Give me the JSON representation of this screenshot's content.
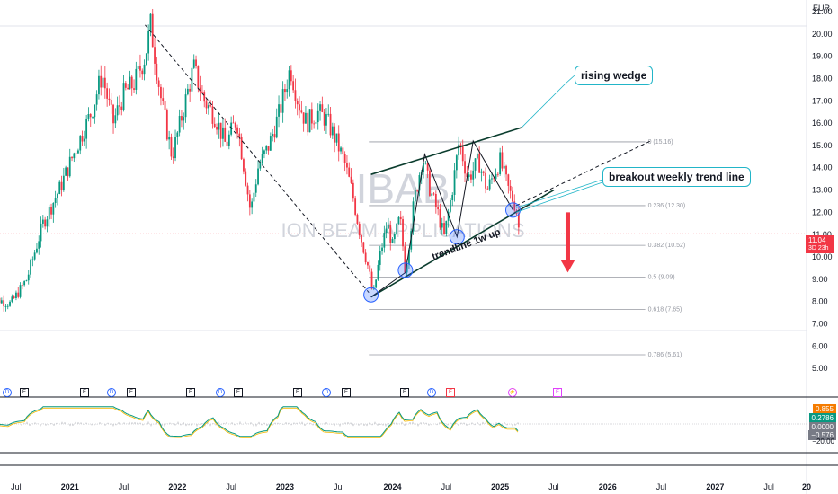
{
  "currency": "EUR",
  "watermark": {
    "ticker": "IBAB",
    "ticker_suffix": "1W",
    "company": "ION BEAM APPLICATIONS"
  },
  "annotations": {
    "rising_wedge": "rising wedge",
    "breakout": "breakout weekly trend line",
    "trendline": "trendline 1w up"
  },
  "price_tags": [
    {
      "label": "11.04",
      "sub": "3D 23h",
      "color": "#f23645"
    }
  ],
  "indicator_tags": [
    {
      "label": "0.855",
      "color": "#f57c00"
    },
    {
      "label": "0.2786",
      "color": "#089981"
    },
    {
      "label": "0.0000",
      "color": "#787b86"
    },
    {
      "label": "−0.576",
      "color": "#787b86"
    }
  ],
  "indicator_axis_label": "−20.00",
  "events": [
    {
      "type": "D",
      "kind": "dividend"
    },
    {
      "type": "E",
      "kind": "earnings"
    },
    {
      "type": "E",
      "kind": "earnings"
    },
    {
      "type": "D",
      "kind": "dividend"
    },
    {
      "type": "E",
      "kind": "earnings"
    },
    {
      "type": "E",
      "kind": "earnings"
    },
    {
      "type": "D",
      "kind": "dividend"
    },
    {
      "type": "E",
      "kind": "earnings"
    },
    {
      "type": "E",
      "kind": "earnings"
    },
    {
      "type": "D",
      "kind": "dividend"
    },
    {
      "type": "E",
      "kind": "earnings"
    },
    {
      "type": "E",
      "kind": "earnings"
    },
    {
      "type": "D",
      "kind": "dividend"
    },
    {
      "type": "E",
      "kind": "earnings-red"
    },
    {
      "type": "⚡",
      "kind": "split"
    },
    {
      "type": "E",
      "kind": "earnings-future"
    }
  ],
  "chart_data": {
    "type": "candlestick",
    "symbol": "IBAB",
    "interval": "1W",
    "currency": "EUR",
    "ylim": [
      4.2,
      21.2
    ],
    "y_ticks": [
      "21.00",
      "20.00",
      "19.00",
      "18.00",
      "17.00",
      "16.00",
      "15.00",
      "14.00",
      "13.00",
      "12.00",
      "11.00",
      "10.00",
      "9.00",
      "8.00",
      "7.00",
      "6.00",
      "5.00"
    ],
    "x_ticks": [
      "Jul",
      "2021",
      "Jul",
      "2022",
      "Jul",
      "2023",
      "Jul",
      "2024",
      "Jul",
      "2025",
      "Jul",
      "2026",
      "Jul",
      "2027",
      "Jul",
      "20"
    ],
    "price_path": [
      [
        2020.25,
        8.2
      ],
      [
        2020.45,
        7.9
      ],
      [
        2020.6,
        9.0
      ],
      [
        2020.75,
        11.5
      ],
      [
        2020.9,
        13.0
      ],
      [
        2021.05,
        14.8
      ],
      [
        2021.2,
        16.5
      ],
      [
        2021.3,
        18.2
      ],
      [
        2021.4,
        16.0
      ],
      [
        2021.5,
        17.3
      ],
      [
        2021.6,
        17.8
      ],
      [
        2021.7,
        19.0
      ],
      [
        2021.75,
        20.4
      ],
      [
        2021.85,
        17.0
      ],
      [
        2021.95,
        14.5
      ],
      [
        2022.05,
        16.5
      ],
      [
        2022.15,
        18.5
      ],
      [
        2022.25,
        17.0
      ],
      [
        2022.35,
        16.3
      ],
      [
        2022.45,
        15.0
      ],
      [
        2022.55,
        16.2
      ],
      [
        2022.62,
        14.0
      ],
      [
        2022.68,
        12.0
      ],
      [
        2022.75,
        14.0
      ],
      [
        2022.85,
        15.0
      ],
      [
        2022.95,
        16.5
      ],
      [
        2023.05,
        18.5
      ],
      [
        2023.12,
        17.0
      ],
      [
        2023.2,
        16.0
      ],
      [
        2023.3,
        16.5
      ],
      [
        2023.38,
        16.2
      ],
      [
        2023.45,
        15.5
      ],
      [
        2023.55,
        14.3
      ],
      [
        2023.62,
        13.0
      ],
      [
        2023.7,
        11.0
      ],
      [
        2023.78,
        9.4
      ],
      [
        2023.82,
        8.2
      ],
      [
        2023.88,
        10.0
      ],
      [
        2023.95,
        11.5
      ],
      [
        2024.0,
        10.5
      ],
      [
        2024.07,
        11.8
      ],
      [
        2024.12,
        9.3
      ],
      [
        2024.2,
        12.5
      ],
      [
        2024.28,
        14.5
      ],
      [
        2024.35,
        13.0
      ],
      [
        2024.42,
        12.0
      ],
      [
        2024.48,
        10.9
      ],
      [
        2024.55,
        12.8
      ],
      [
        2024.62,
        15.2
      ],
      [
        2024.7,
        13.5
      ],
      [
        2024.8,
        14.3
      ],
      [
        2024.88,
        13.0
      ],
      [
        2024.95,
        13.8
      ],
      [
        2025.0,
        14.3
      ],
      [
        2025.08,
        13.0
      ],
      [
        2025.15,
        12.2
      ],
      [
        2025.18,
        11.04
      ]
    ],
    "drawings": {
      "fibonacci_levels": [
        {
          "ratio": "0",
          "price": 15.16,
          "label": "0 (15.16)"
        },
        {
          "ratio": "0.236",
          "price": 12.3,
          "label": "0.236 (12.30)"
        },
        {
          "ratio": "0.382",
          "price": 10.52,
          "label": "0.382 (10.52)"
        },
        {
          "ratio": "0.5",
          "price": 9.09,
          "label": "0.5 (9.09)"
        },
        {
          "ratio": "0.618",
          "price": 7.65,
          "label": "0.618 (7.65)"
        },
        {
          "ratio": "0.786",
          "price": 5.61,
          "label": "0.786 (5.61)"
        }
      ],
      "downtrend_line": [
        [
          2021.7,
          20.4
        ],
        [
          2023.78,
          8.4
        ]
      ],
      "wedge_upper": [
        [
          2023.8,
          13.7
        ],
        [
          2025.2,
          15.8
        ]
      ],
      "wedge_lower": [
        [
          2023.8,
          8.2
        ],
        [
          2025.5,
          13.0
        ]
      ],
      "trend_extension": [
        [
          2025.15,
          12.3
        ],
        [
          2026.4,
          15.2
        ]
      ],
      "zigzag": [
        [
          2023.8,
          8.2
        ],
        [
          2024.12,
          9.3
        ],
        [
          2024.3,
          14.6
        ],
        [
          2024.6,
          10.9
        ],
        [
          2024.75,
          15.2
        ],
        [
          2025.12,
          12.1
        ]
      ],
      "circled_points": [
        [
          2023.8,
          8.3
        ],
        [
          2024.12,
          9.4
        ],
        [
          2024.6,
          10.9
        ],
        [
          2025.12,
          12.1
        ]
      ],
      "down_arrow": {
        "x": 2025.63,
        "from": 12.0,
        "to": 9.3
      }
    },
    "indicator": {
      "type": "oscillator",
      "current": [
        0.855,
        0.2786,
        0.0,
        -0.576
      ]
    }
  }
}
